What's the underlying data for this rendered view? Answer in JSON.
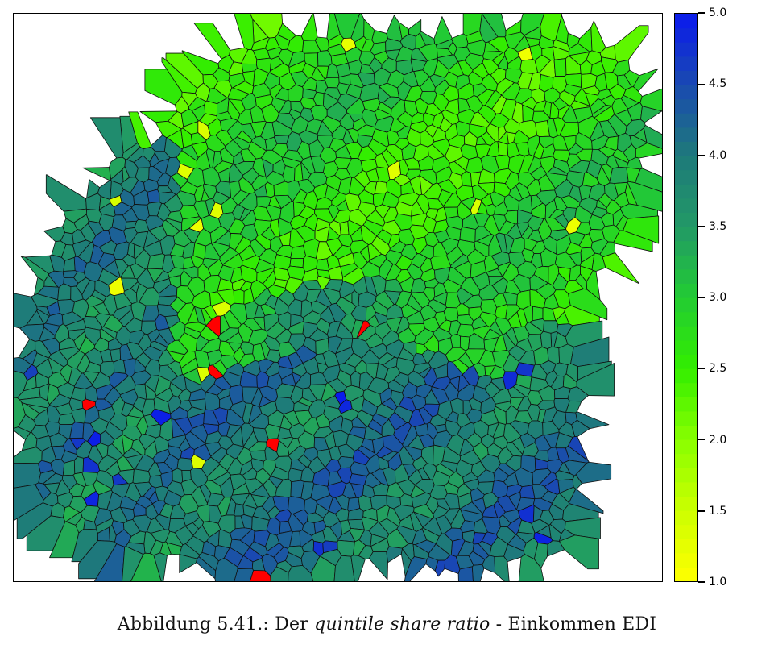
{
  "chart_data": {
    "type": "choropleth",
    "title": "",
    "legend": {
      "title": "",
      "min": 1.0,
      "max": 5.0,
      "ticks": [
        "1.0",
        "1.5",
        "2.0",
        "2.5",
        "3.0",
        "3.5",
        "4.0",
        "4.5",
        "5.0"
      ],
      "palette": [
        "#ffff00",
        "#ccff00",
        "#88ff00",
        "#33ee00",
        "#22cc33",
        "#229966",
        "#1e7a7a",
        "#1a4ab0",
        "#0a1aee"
      ],
      "position": "right"
    },
    "regions_summary": {
      "north": "values mostly 2.5–3.3 (light green)",
      "south": "values mostly 3.5–4.5 (teal/blue-green)",
      "outliers": "a few regions below 1.5 (yellow) and some above legend max (red)"
    },
    "outlier_color": "#ff0000"
  },
  "caption": {
    "prefix": "Abbildung 5.41.: Der ",
    "italic": "quintile share ratio",
    "suffix": " - Einkommen EDI"
  }
}
